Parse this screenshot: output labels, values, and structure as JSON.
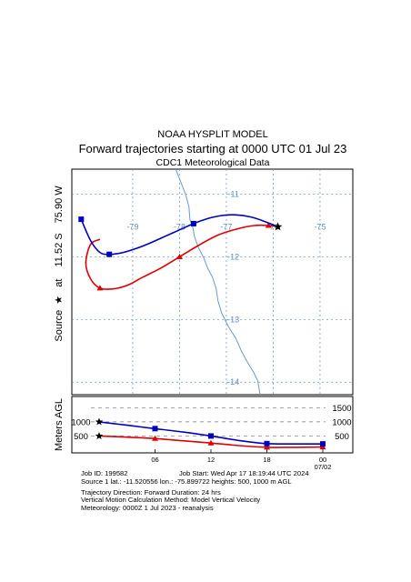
{
  "header": {
    "model": "NOAA HYSPLIT MODEL",
    "title": "Forward trajectories starting at 0000 UTC 01 Jul 23",
    "met": "CDC1 Meteorological Data"
  },
  "source_label": {
    "prefix": "Source",
    "at": "at",
    "lat": "11.52 S",
    "lon": "75.90 W"
  },
  "colors": {
    "traj_500": "#e00000",
    "traj_1000": "#0000c0",
    "grid": "#6090c0",
    "coastline": "#6a9ac8"
  },
  "chart_data": [
    {
      "type": "line",
      "name": "trajectory-map",
      "xlim": [
        -80.3,
        -74.3
      ],
      "ylim": [
        -14.2,
        -10.6
      ],
      "lon_labels": [
        {
          "lon": -79,
          "text": "-79"
        },
        {
          "lon": -78,
          "text": "-78"
        },
        {
          "lon": -77,
          "text": "-77"
        },
        {
          "lon": -76,
          "text": "-76"
        },
        {
          "lon": -75,
          "text": "-75"
        }
      ],
      "lat_labels": [
        {
          "lat": -11,
          "text": "-11"
        },
        {
          "lat": -12,
          "text": "-12"
        },
        {
          "lat": -13,
          "text": "-13"
        },
        {
          "lat": -14,
          "text": "-14"
        }
      ],
      "grid": true,
      "source": {
        "lon": -75.9,
        "lat": -11.52
      },
      "series": [
        {
          "height": "500",
          "color": "#e00000",
          "marker": "triangle",
          "lon": [
            -75.9,
            -76.1,
            -76.4,
            -76.8,
            -77.2,
            -77.6,
            -78.0,
            -78.4,
            -78.8,
            -79.1,
            -79.4,
            -79.7,
            -79.9,
            -80.0,
            -79.9,
            -79.7
          ],
          "lat": [
            -11.52,
            -11.5,
            -11.5,
            -11.56,
            -11.66,
            -11.82,
            -12.0,
            -12.18,
            -12.33,
            -12.45,
            -12.51,
            -12.5,
            -12.35,
            -12.1,
            -11.8,
            -11.72
          ],
          "marker_idx": [
            1,
            6,
            11
          ]
        },
        {
          "height": "1000",
          "color": "#0000c0",
          "marker": "square",
          "lon": [
            -75.9,
            -76.2,
            -76.5,
            -76.8,
            -77.1,
            -77.4,
            -77.7,
            -78.0,
            -78.3,
            -78.6,
            -78.9,
            -79.2,
            -79.5,
            -79.7,
            -79.9,
            -80.1
          ],
          "lat": [
            -11.52,
            -11.43,
            -11.36,
            -11.33,
            -11.34,
            -11.39,
            -11.47,
            -11.57,
            -11.67,
            -11.77,
            -11.86,
            -11.93,
            -11.96,
            -11.93,
            -11.74,
            -11.4
          ],
          "marker_idx": [
            6,
            12,
            15
          ]
        }
      ],
      "coastline": {
        "lon": [
          -78.08,
          -77.95,
          -77.87,
          -77.8,
          -77.78,
          -77.72,
          -77.68,
          -77.6,
          -77.48,
          -77.4,
          -77.3,
          -77.22,
          -77.18,
          -77.1,
          -76.95,
          -76.8,
          -76.68,
          -76.55,
          -76.42,
          -76.33,
          -76.28
        ],
        "lat": [
          -10.6,
          -10.85,
          -11.0,
          -11.2,
          -11.4,
          -11.52,
          -11.68,
          -11.85,
          -12.02,
          -12.18,
          -12.32,
          -12.5,
          -12.7,
          -12.9,
          -13.12,
          -13.3,
          -13.5,
          -13.68,
          -13.84,
          -13.98,
          -14.2
        ]
      }
    },
    {
      "type": "line",
      "name": "height-profile",
      "x": [
        0,
        6,
        12,
        18,
        24
      ],
      "x_tick_labels": [
        "06",
        "12",
        "18",
        "00"
      ],
      "x_date_label": "07/02",
      "ylim": [
        0,
        1800
      ],
      "ylabel": "Meters AGL",
      "right_labels": [
        "1500",
        "1000",
        "500"
      ],
      "left_labels": [
        "1000",
        "500"
      ],
      "series": [
        {
          "height": "500",
          "color": "#e00000",
          "marker": "triangle",
          "x": [
            0,
            3,
            6,
            9,
            12,
            15,
            18,
            21,
            24
          ],
          "y": [
            500,
            460,
            410,
            330,
            250,
            160,
            100,
            100,
            110
          ]
        },
        {
          "height": "1000",
          "color": "#0000c0",
          "marker": "square",
          "x": [
            0,
            3,
            6,
            9,
            12,
            15,
            18,
            21,
            24
          ],
          "y": [
            1000,
            880,
            760,
            640,
            500,
            340,
            230,
            220,
            220
          ]
        }
      ]
    }
  ],
  "footer": {
    "line1_left": "Job ID: 199582",
    "line1_right": "Job Start: Wed Apr 17 18:19:44 UTC 2024",
    "line2": "Source 1 lat.: -11.520556  lon.: -75.899722  heights: 500, 1000 m AGL",
    "line3": "Trajectory Direction: Forward      Duration: 24 hrs",
    "line4": "Vertical Motion Calculation Method:        Model Vertical Velocity",
    "line5": "Meteorology: 0000Z 1 Jul 2023 - reanalysis"
  }
}
